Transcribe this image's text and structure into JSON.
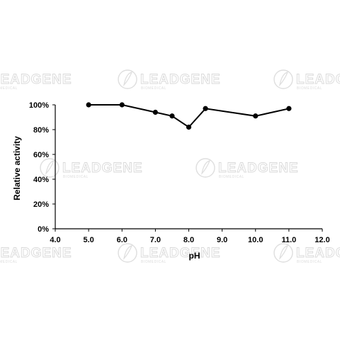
{
  "watermark": {
    "text": "LEADGENE",
    "subtext": "BIOMEDICAL"
  },
  "chart_data": {
    "type": "line",
    "xlabel": "pH",
    "ylabel": "Relative activity",
    "xlim": [
      4.0,
      12.0
    ],
    "ylim": [
      0,
      100
    ],
    "x_ticks": [
      "4.0",
      "5.0",
      "6.0",
      "7.0",
      "8.0",
      "9.0",
      "10.0",
      "11.0",
      "12.0"
    ],
    "y_ticks": [
      "0%",
      "20%",
      "40%",
      "60%",
      "80%",
      "100%"
    ],
    "series": [
      {
        "x": [
          5.0,
          6.0,
          7.0,
          7.5,
          8.0,
          8.5,
          10.0,
          11.0
        ],
        "y": [
          100,
          100,
          94,
          91,
          82,
          97,
          91,
          97
        ]
      }
    ],
    "grid": false,
    "legend": "none",
    "line_color": "#000000",
    "marker_color": "#000000"
  }
}
